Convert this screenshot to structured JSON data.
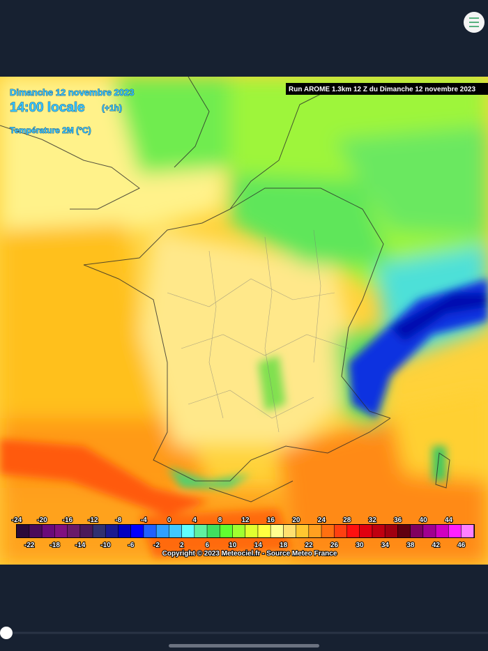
{
  "map": {
    "date": "Dimanche 12 novembre 2023",
    "time": "14:00 locale",
    "offset": "(+1h)",
    "variable": "Température 2M (°C)",
    "run": "Run AROME 1.3km 12 Z du Dimanche 12 novembre 2023",
    "copyright": "Copyright © 2023 Meteociel.fr - Source Meteo France",
    "scale": {
      "top_labels": [
        -24,
        -20,
        -16,
        -12,
        -8,
        -4,
        0,
        4,
        8,
        12,
        16,
        20,
        24,
        28,
        32,
        36,
        40,
        44
      ],
      "bottom_labels": [
        -22,
        -18,
        -14,
        -10,
        -6,
        -2,
        2,
        6,
        10,
        14,
        18,
        22,
        26,
        30,
        34,
        38,
        42,
        46
      ],
      "colors": [
        "#2a0a3a",
        "#4a0a5a",
        "#6a0a7a",
        "#80107f",
        "#6a1a6a",
        "#4a1a5a",
        "#303070",
        "#1a1a90",
        "#0000c0",
        "#0000ff",
        "#2060ff",
        "#30a0ff",
        "#40c8ff",
        "#60ffff",
        "#60f0a0",
        "#40e060",
        "#60ff30",
        "#a0ff30",
        "#e0ff30",
        "#ffff40",
        "#ffff90",
        "#ffe070",
        "#ffc830",
        "#ffa020",
        "#ff7010",
        "#ff4010",
        "#ff1010",
        "#e00010",
        "#c00010",
        "#a00010",
        "#600010",
        "#800060",
        "#a00090",
        "#d000c0",
        "#ff20ff",
        "#ff80ff"
      ]
    }
  }
}
